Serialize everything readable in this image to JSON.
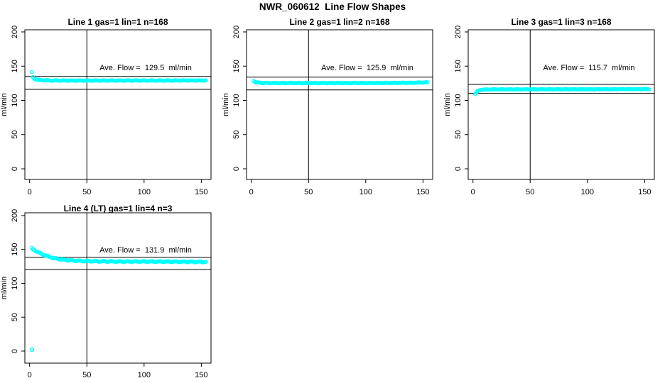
{
  "figure": {
    "title": "NWR_060612  Line Flow Shapes",
    "background_color": "#FFFFFF",
    "marker_color": "#00FFFF",
    "line_color": "#000000"
  },
  "chart_data": [
    {
      "type": "scatter",
      "title": "Line 1 gas=1 lin=1 n=168",
      "annotation": "Ave. Flow =  129.5  ml/min",
      "ave_flow_ml_min": 129.5,
      "n": 168,
      "ylabel": "ml/min",
      "xlabel": "",
      "xlim": [
        0,
        150
      ],
      "ylim": [
        0,
        200
      ],
      "xticks": [
        0,
        50,
        100,
        150
      ],
      "yticks": [
        0,
        50,
        100,
        150,
        200
      ],
      "vline_x": 50,
      "hlines": [
        135,
        116
      ],
      "marker": "open-circle",
      "color": "#00FFFF",
      "x_start": 2,
      "x_end": 154,
      "x_step": 1,
      "wiggle": 0.5,
      "keypoints": [
        [
          2,
          141
        ],
        [
          3,
          133.5
        ],
        [
          4,
          131.8
        ],
        [
          5,
          130.8
        ],
        [
          7,
          130.1
        ],
        [
          10,
          129.6
        ],
        [
          14,
          129.2
        ],
        [
          20,
          129.0
        ],
        [
          40,
          128.9
        ],
        [
          80,
          129.0
        ],
        [
          120,
          129.0
        ],
        [
          154,
          129.1
        ]
      ],
      "outliers": []
    },
    {
      "type": "scatter",
      "title": "Line 2 gas=1 lin=2 n=168",
      "annotation": "Ave. Flow =  125.9  ml/min",
      "ave_flow_ml_min": 125.9,
      "n": 168,
      "ylabel": "ml/min",
      "xlabel": "",
      "xlim": [
        0,
        150
      ],
      "ylim": [
        0,
        200
      ],
      "xticks": [
        0,
        50,
        100,
        150
      ],
      "yticks": [
        0,
        50,
        100,
        150,
        200
      ],
      "vline_x": 50,
      "hlines": [
        134,
        115.3
      ],
      "marker": "open-circle",
      "color": "#00FFFF",
      "x_start": 2,
      "x_end": 154,
      "x_step": 1,
      "wiggle": 0.5,
      "keypoints": [
        [
          2,
          128.5
        ],
        [
          3,
          127.2
        ],
        [
          4,
          126.5
        ],
        [
          6,
          125.9
        ],
        [
          10,
          125.5
        ],
        [
          20,
          125.3
        ],
        [
          60,
          125.3
        ],
        [
          110,
          125.4
        ],
        [
          140,
          125.7
        ],
        [
          150,
          126.1
        ],
        [
          154,
          126.4
        ]
      ],
      "outliers": []
    },
    {
      "type": "scatter",
      "title": "Line 3 gas=1 lin=3 n=168",
      "annotation": "Ave. Flow =  115.7  ml/min",
      "ave_flow_ml_min": 115.7,
      "n": 168,
      "ylabel": "ml/min",
      "xlabel": "",
      "xlim": [
        0,
        150
      ],
      "ylim": [
        0,
        200
      ],
      "xticks": [
        0,
        50,
        100,
        150
      ],
      "yticks": [
        0,
        50,
        100,
        150,
        200
      ],
      "vline_x": 50,
      "hlines": [
        123.3,
        110.2
      ],
      "marker": "open-circle",
      "color": "#00FFFF",
      "x_start": 2,
      "x_end": 154,
      "x_step": 1,
      "wiggle": 0.5,
      "keypoints": [
        [
          2,
          109.0
        ],
        [
          3,
          111.5
        ],
        [
          4,
          113.3
        ],
        [
          5,
          114.3
        ],
        [
          7,
          115.3
        ],
        [
          10,
          115.8
        ],
        [
          20,
          116.0
        ],
        [
          60,
          116.1
        ],
        [
          100,
          116.2
        ],
        [
          154,
          116.4
        ]
      ],
      "outliers": []
    },
    {
      "type": "scatter",
      "title": "Line 4 (LT) gas=1 lin=4 n=3",
      "annotation": "Ave. Flow =  131.9  ml/min",
      "ave_flow_ml_min": 131.9,
      "n": 3,
      "ylabel": "ml/min",
      "xlabel": "",
      "xlim": [
        0,
        150
      ],
      "ylim": [
        0,
        200
      ],
      "xticks": [
        0,
        50,
        100,
        150
      ],
      "yticks": [
        0,
        50,
        100,
        150,
        200
      ],
      "vline_x": 50,
      "hlines": [
        138.5,
        120.5
      ],
      "marker": "open-circle",
      "color": "#00FFFF",
      "x_start": 2,
      "x_end": 154,
      "x_step": 1,
      "wiggle": 1.0,
      "keypoints": [
        [
          2,
          151.5
        ],
        [
          3,
          150.3
        ],
        [
          4,
          149.2
        ],
        [
          6,
          147.2
        ],
        [
          8,
          145.4
        ],
        [
          10,
          143.8
        ],
        [
          13,
          141.6
        ],
        [
          16,
          139.8
        ],
        [
          20,
          137.8
        ],
        [
          25,
          136.0
        ],
        [
          30,
          134.8
        ],
        [
          36,
          133.8
        ],
        [
          45,
          133.0
        ],
        [
          60,
          132.4
        ],
        [
          80,
          132.1
        ],
        [
          100,
          132.2
        ],
        [
          120,
          132.0
        ],
        [
          140,
          131.8
        ],
        [
          154,
          131.6
        ]
      ],
      "outliers": [
        [
          2,
          2
        ]
      ]
    }
  ]
}
